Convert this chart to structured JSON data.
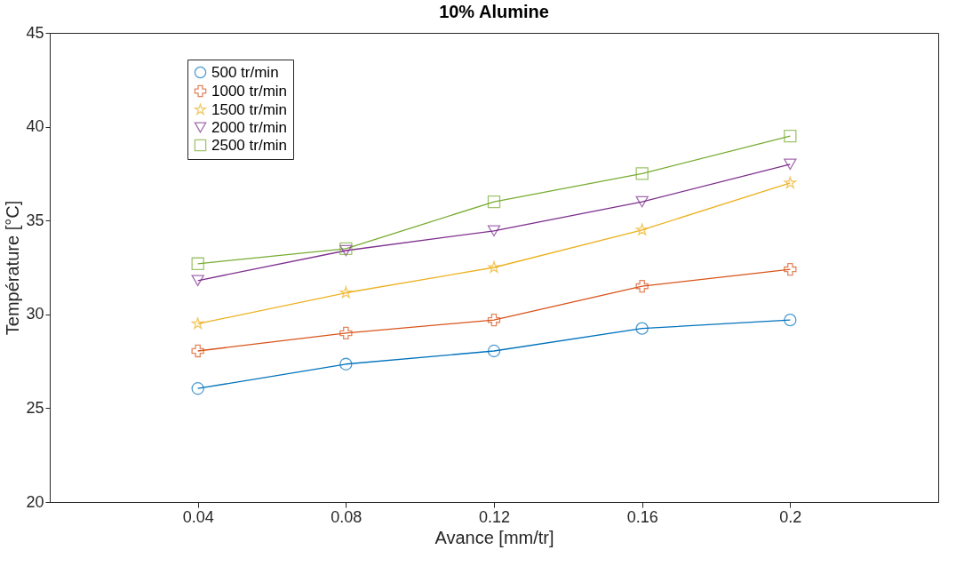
{
  "chart_data": {
    "type": "line",
    "title": "10% Alumine",
    "xlabel": "Avance [mm/tr]",
    "ylabel": "Température [°C]",
    "x": [
      0.04,
      0.08,
      0.12,
      0.16,
      0.2
    ],
    "series": [
      {
        "name": "500 tr/min",
        "color": "#0072bd",
        "marker": "circle",
        "values": [
          26.05,
          27.35,
          28.05,
          29.25,
          29.7
        ]
      },
      {
        "name": "1000 tr/min",
        "color": "#d95319",
        "marker": "cross",
        "values": [
          28.05,
          29.0,
          29.7,
          31.5,
          32.4
        ]
      },
      {
        "name": "1500 tr/min",
        "color": "#edb120",
        "marker": "star",
        "values": [
          29.5,
          31.15,
          32.5,
          34.5,
          37.0
        ]
      },
      {
        "name": "2000 tr/min",
        "color": "#7e2f8e",
        "marker": "triangle",
        "values": [
          31.8,
          33.4,
          34.45,
          36.0,
          38.0
        ]
      },
      {
        "name": "2500 tr/min",
        "color": "#77ac30",
        "marker": "square",
        "values": [
          32.7,
          33.5,
          36.0,
          37.5,
          39.5
        ]
      }
    ],
    "xlim": [
      0,
      0.24
    ],
    "xticks": [
      0.04,
      0.08,
      0.12,
      0.16,
      0.2
    ],
    "ylim": [
      20,
      45
    ],
    "yticks": [
      20,
      25,
      30,
      35,
      40,
      45
    ],
    "grid": false,
    "legend": "top left",
    "line_style": "solid"
  }
}
